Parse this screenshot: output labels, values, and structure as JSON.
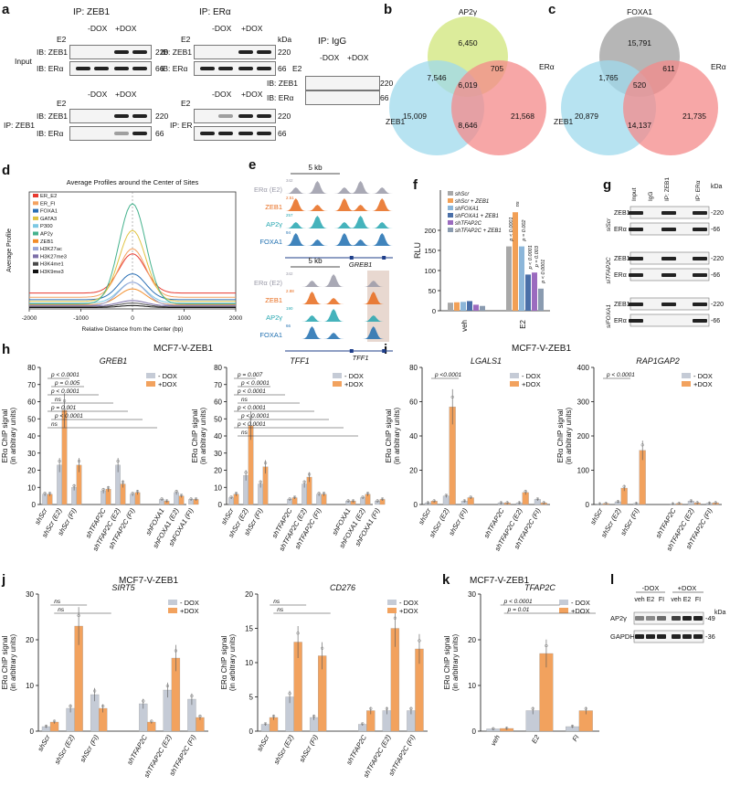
{
  "panels": {
    "a": "a",
    "b": "b",
    "c": "c",
    "d": "d",
    "e": "e",
    "f": "f",
    "g": "g",
    "h": "h",
    "i": "i",
    "j": "j",
    "k": "k",
    "l": "l"
  },
  "panel_a": {
    "ip_zeb1": "IP: ZEB1",
    "ip_era": "IP: ERα",
    "ip_igg": "IP: IgG",
    "input": "Input",
    "ip_zeb1_row": "IP: ZEB1",
    "ip_er_row": "IP: ER",
    "ib_zeb1": "IB: ZEB1",
    "ib_era": "IB: ERα",
    "e2": "E2",
    "minus_dox": "-DOX",
    "plus_dox": "+DOX",
    "minus": "-",
    "plus": "+",
    "kda": "kDa",
    "mw_220": "220",
    "mw_66": "66"
  },
  "panel_b": {
    "labels": {
      "top": "AP2γ",
      "left": "ZEB1",
      "right": "ERα"
    },
    "regions": {
      "top_only": "6,450",
      "left_only": "15,009",
      "right_only": "21,568",
      "top_left": "7,546",
      "top_right": "705",
      "left_right": "8,646",
      "center": "6,019"
    },
    "colors": {
      "top": "#d6e98a",
      "left": "#9fd9ec",
      "right": "#f48a8a"
    }
  },
  "panel_c": {
    "labels": {
      "top": "FOXA1",
      "left": "ZEB1",
      "right": "ERα"
    },
    "regions": {
      "top_only": "15,791",
      "left_only": "20,879",
      "right_only": "21,735",
      "top_left": "1,765",
      "top_right": "611",
      "left_right": "14,137",
      "center": "520"
    },
    "colors": {
      "top": "#a9a9a9",
      "left": "#9fd9ec",
      "right": "#f48a8a"
    }
  },
  "panel_d": {
    "chart_data": {
      "type": "line",
      "title": "Average Profiles around the Center of Sites",
      "xlabel": "Relative Distance from the Center (bp)",
      "ylabel": "Average Profile",
      "xticks": [
        "-2000",
        "-1000",
        "0",
        "1000",
        "2000"
      ],
      "xlim": [
        -2000,
        2000
      ],
      "series": [
        {
          "name": "ER_E2",
          "color": "#e8392f",
          "base": 0.95,
          "peak": 3.3
        },
        {
          "name": "ER_FI",
          "color": "#f4a261",
          "base": 0.7,
          "peak": 3.6
        },
        {
          "name": "FOXA1",
          "color": "#2a6fb5",
          "base": 0.55,
          "peak": 2.1
        },
        {
          "name": "GATA3",
          "color": "#e0c341",
          "base": 0.45,
          "peak": 4.7
        },
        {
          "name": "P300",
          "color": "#7dc8e3",
          "base": 0.35,
          "peak": 1.6
        },
        {
          "name": "AP2y",
          "color": "#45b28d",
          "base": 0.3,
          "peak": 6.3
        },
        {
          "name": "ZEB1",
          "color": "#f28c28",
          "base": 0.25,
          "peak": 1.2
        },
        {
          "name": "H3K27ac",
          "color": "#9aa5d6",
          "base": 0.2,
          "peak": 1.6
        },
        {
          "name": "H3K27me3",
          "color": "#7c6fa8",
          "base": 0.18,
          "peak": 0.5
        },
        {
          "name": "H3K4me1",
          "color": "#4a4a4a",
          "base": 0.12,
          "peak": 0.35
        },
        {
          "name": "H3K9me3",
          "color": "#111111",
          "base": 0.08,
          "peak": 0.2
        }
      ]
    }
  },
  "panel_e": {
    "scale_top": "5 kb",
    "scale_bottom": "5 kb",
    "gene_top": "GREB1",
    "gene_bottom": "TFF1",
    "tracks": [
      {
        "name": "ERα (E2)",
        "color": "#9a9aa8",
        "max_top": "342",
        "max_bottom": "342"
      },
      {
        "name": "ZEB1",
        "color": "#e86b1c",
        "max_top": "2.51",
        "max_bottom": "2.88"
      },
      {
        "name": "AP2γ",
        "color": "#25a6b0",
        "max_top": "257",
        "max_bottom": "190"
      },
      {
        "name": "FOXA1",
        "color": "#1f6fb0",
        "max_top": "94",
        "max_bottom": "66"
      }
    ]
  },
  "panel_f": {
    "chart_data": {
      "type": "bar",
      "ylabel": "RLU",
      "yticks": [
        "0",
        "50",
        "100",
        "150",
        "200"
      ],
      "ylim": [
        0,
        300
      ],
      "categories": [
        "veh",
        "E2"
      ],
      "series": [
        {
          "name": "shScr",
          "color": "#a8a8a8",
          "values": [
            20,
            160
          ]
        },
        {
          "name": "shScr + ZEB1",
          "color": "#f2a056",
          "values": [
            21,
            245
          ]
        },
        {
          "name": "shFOXA1",
          "color": "#8cb6d9",
          "values": [
            22,
            160
          ]
        },
        {
          "name": "shFOXA1 + ZEB1",
          "color": "#4a6fa8",
          "values": [
            24,
            90
          ]
        },
        {
          "name": "shTFAP2C",
          "color": "#9b6bbf",
          "values": [
            15,
            95
          ]
        },
        {
          "name": "shTFAP2C + ZEB1",
          "color": "#8a9bb0",
          "values": [
            12,
            55
          ]
        }
      ],
      "annotations": [
        "p < 0.0001",
        "ns",
        "p = 0.002",
        "p < 0.0001",
        "p = 0.003",
        "p < 0.0001"
      ]
    }
  },
  "panel_g": {
    "cols": [
      "Input",
      "IgG",
      "IP: ZEB1",
      "IP: ERα"
    ],
    "kda": "kDa",
    "groups": [
      {
        "label": "siScr",
        "rows": [
          "ZEB1",
          "ERα"
        ]
      },
      {
        "label": "siTFAP2C",
        "rows": [
          "ZEB1",
          "ERα"
        ]
      },
      {
        "label": "siFOXA1",
        "rows": [
          "ZEB1",
          "ERα"
        ]
      }
    ],
    "mw": [
      "220",
      "66"
    ]
  },
  "header_h": "MCF7-V-ZEB1",
  "header_i": "MCF7-V-ZEB1",
  "header_j": "MCF7-V-ZEB1",
  "header_k": "MCF7-V-ZEB1",
  "legend": {
    "minus": "- DOX",
    "plus": "+DOX",
    "minus_k": "- DOX",
    "plus_k": "+DOX",
    "grey": "#c5cbd6",
    "orange": "#f2a25e"
  },
  "ylabel1": "ERα ChIP signal",
  "ylabel2": "(in arbitrary units)",
  "panel_h1": {
    "chart_data": {
      "type": "bar",
      "title": "GREB1",
      "categories": [
        "shScr",
        "shScr (E2)",
        "shScr (FI)",
        "shTFAP2C",
        "shTFAP2C (E2)",
        "shTFAP2C (FI)",
        "shFOXA1",
        "shFOXA1 (E2)",
        "shFOXA1 (FI)"
      ],
      "yticks": [
        "0",
        "10",
        "20",
        "30",
        "40",
        "50",
        "60",
        "70",
        "80"
      ],
      "ylim": [
        0,
        80
      ],
      "series": [
        {
          "name": "- DOX",
          "values": [
            6,
            23,
            10,
            8,
            23,
            6,
            3,
            7,
            3
          ]
        },
        {
          "name": "+DOX",
          "values": [
            6,
            55,
            23,
            9,
            12,
            7,
            2,
            5,
            3
          ]
        }
      ],
      "annotations": [
        "p < 0.0001",
        "p = 0.005",
        "p < 0.0001",
        "ns",
        "p = 0.001",
        "p < 0.0001",
        "ns"
      ]
    }
  },
  "panel_h2": {
    "chart_data": {
      "type": "bar",
      "title": "TFF1",
      "categories": [
        "shScr",
        "shScr (E2)",
        "shScr (FI)",
        "shTFAP2C",
        "shTFAP2C (E2)",
        "shTFAP2C (FI)",
        "shFOXA1",
        "shFOXA1 (E2)",
        "shFOXA1 (FI)"
      ],
      "yticks": [
        "0",
        "10",
        "20",
        "30",
        "40",
        "50",
        "60",
        "70",
        "80"
      ],
      "ylim": [
        0,
        80
      ],
      "series": [
        {
          "name": "- DOX",
          "values": [
            4,
            17,
            12,
            3,
            12,
            6,
            2,
            4,
            2
          ]
        },
        {
          "name": "+DOX",
          "values": [
            6,
            46,
            22,
            4,
            16,
            6,
            2,
            6,
            3
          ]
        }
      ],
      "annotations": [
        "p = 0.007",
        "p < 0.0001",
        "p < 0.0001",
        "ns",
        "p < 0.0001",
        "p < 0.0001",
        "p < 0.0001",
        "ns"
      ]
    }
  },
  "panel_i1": {
    "chart_data": {
      "type": "bar",
      "title": "LGALS1",
      "categories": [
        "shScr",
        "shScr (E2)",
        "shScr (FI)",
        "shTFAP2C",
        "shTFAP2C (E2)",
        "shTFAP2C (FI)"
      ],
      "yticks": [
        "0",
        "20",
        "40",
        "60",
        "80"
      ],
      "ylim": [
        0,
        80
      ],
      "series": [
        {
          "name": "- DOX",
          "values": [
            1,
            5,
            2,
            1,
            1,
            3
          ]
        },
        {
          "name": "+DOX",
          "values": [
            2,
            57,
            4,
            1,
            7,
            1
          ]
        }
      ],
      "annotations": [
        "p <0.0001"
      ]
    }
  },
  "panel_i2": {
    "chart_data": {
      "type": "bar",
      "title": "RAP1GAP2",
      "categories": [
        "shScr",
        "shScr (E2)",
        "shScr (FI)",
        "shTFAP2C",
        "shTFAP2C (E2)",
        "shTFAP2C (FI)"
      ],
      "yticks": [
        "0",
        "100",
        "200",
        "300",
        "400"
      ],
      "ylim": [
        0,
        400
      ],
      "series": [
        {
          "name": "- DOX",
          "values": [
            2,
            8,
            3,
            2,
            10,
            4
          ]
        },
        {
          "name": "+DOX",
          "values": [
            3,
            48,
            158,
            3,
            5,
            5
          ]
        }
      ],
      "annotations": [
        "p < 0.0001"
      ]
    }
  },
  "panel_j1": {
    "chart_data": {
      "type": "bar",
      "title": "SIRT5",
      "categories": [
        "shScr",
        "shScr (E2)",
        "shScr (FI)",
        "shTFAP2C",
        "shTFAP2C (E2)",
        "shTFAP2C (FI)"
      ],
      "yticks": [
        "0",
        "10",
        "20",
        "30"
      ],
      "ylim": [
        0,
        30
      ],
      "series": [
        {
          "name": "- DOX",
          "values": [
            1,
            5,
            8,
            6,
            9,
            7
          ]
        },
        {
          "name": "+DOX",
          "values": [
            2,
            23,
            5,
            2,
            16,
            3
          ]
        }
      ],
      "annotations": [
        "ns",
        "ns"
      ]
    }
  },
  "panel_j2": {
    "chart_data": {
      "type": "bar",
      "title": "CD276",
      "categories": [
        "shScr",
        "shScr (E2)",
        "shScr (FI)",
        "shTFAP2C",
        "shTFAP2C (E2)",
        "shTFAP2C (FI)"
      ],
      "yticks": [
        "0",
        "5",
        "10",
        "15",
        "20"
      ],
      "ylim": [
        0,
        20
      ],
      "series": [
        {
          "name": "- DOX",
          "values": [
            1,
            5,
            2,
            1,
            3,
            3
          ]
        },
        {
          "name": "+DOX",
          "values": [
            2,
            13,
            11,
            3,
            15,
            12
          ]
        }
      ],
      "annotations": [
        "ns",
        "ns"
      ]
    }
  },
  "panel_k": {
    "chart_data": {
      "type": "bar",
      "title": "TFAP2C",
      "categories": [
        "veh",
        "E2",
        "FI"
      ],
      "yticks": [
        "0",
        "10",
        "20",
        "30"
      ],
      "ylim": [
        0,
        30
      ],
      "series": [
        {
          "name": "- DOX",
          "values": [
            0.5,
            4.5,
            1
          ]
        },
        {
          "name": "+DOX",
          "values": [
            0.6,
            17,
            4.5
          ]
        }
      ],
      "annotations": [
        "p < 0.0001",
        "p = 0.01"
      ]
    }
  },
  "panel_l": {
    "minus_dox": "-DOX",
    "plus_dox": "+DOX",
    "cols": [
      "veh",
      "E2",
      "FI",
      "veh",
      "E2",
      "FI"
    ],
    "kda": "kDa",
    "rows": [
      {
        "label": "AP2γ",
        "mw": "49"
      },
      {
        "label": "GAPDH",
        "mw": "36"
      }
    ]
  }
}
